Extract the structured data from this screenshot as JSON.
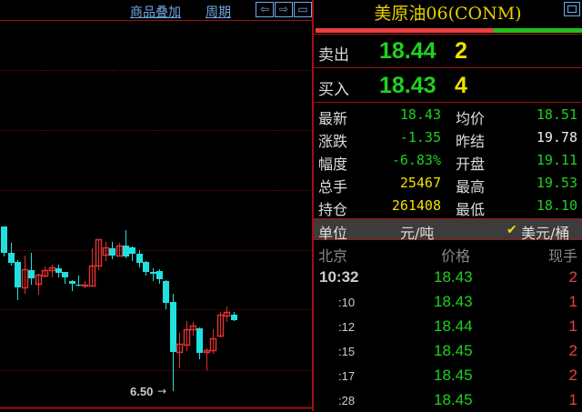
{
  "toolbar": {
    "overlay_label": "商品叠加",
    "period_label": "周期",
    "buttons": [
      "arrow-left",
      "arrow-right",
      "layout"
    ]
  },
  "chart": {
    "low_label": "6.50",
    "low_arrow": "→",
    "up_color": "#e03030",
    "down_color": "#20e0e0"
  },
  "quote": {
    "title": "美原油06(CONM)",
    "buy_ratio": 0.67,
    "sell": {
      "label": "卖出",
      "price": "18.44",
      "volume": "2"
    },
    "buy": {
      "label": "买入",
      "price": "18.43",
      "volume": "4"
    }
  },
  "stats": [
    {
      "l1": "最新",
      "v1": "18.43",
      "c1": "#20d020",
      "l2": "均价",
      "v2": "18.51",
      "c2": "#20d020"
    },
    {
      "l1": "涨跌",
      "v1": "-1.35",
      "c1": "#20d020",
      "l2": "昨结",
      "v2": "19.78",
      "c2": "#eeeeee"
    },
    {
      "l1": "幅度",
      "v1": "-6.83%",
      "c1": "#20d020",
      "l2": "开盘",
      "v2": "19.11",
      "c2": "#20d020"
    },
    {
      "l1": "总手",
      "v1": "25467",
      "c1": "#f0e000",
      "l2": "最高",
      "v2": "19.53",
      "c2": "#20d020"
    },
    {
      "l1": "持仓",
      "v1": "261408",
      "c1": "#f0e000",
      "l2": "最低",
      "v2": "18.10",
      "c2": "#20d020"
    }
  ],
  "unit": {
    "label": "单位",
    "option1": "元/吨",
    "check": "✔",
    "option2": "美元/桶",
    "selected": "美元/桶"
  },
  "ticks": {
    "headers": [
      "北京",
      "价格",
      "现手"
    ],
    "rows": [
      {
        "time": "10:32",
        "price": "18.43",
        "vol": "2"
      },
      {
        "time": ":10",
        "price": "18.43",
        "vol": "1"
      },
      {
        "time": ":12",
        "price": "18.44",
        "vol": "1"
      },
      {
        "time": ":15",
        "price": "18.45",
        "vol": "2"
      },
      {
        "time": ":17",
        "price": "18.45",
        "vol": "2"
      },
      {
        "time": ":28",
        "price": "18.45",
        "vol": "1"
      }
    ]
  }
}
